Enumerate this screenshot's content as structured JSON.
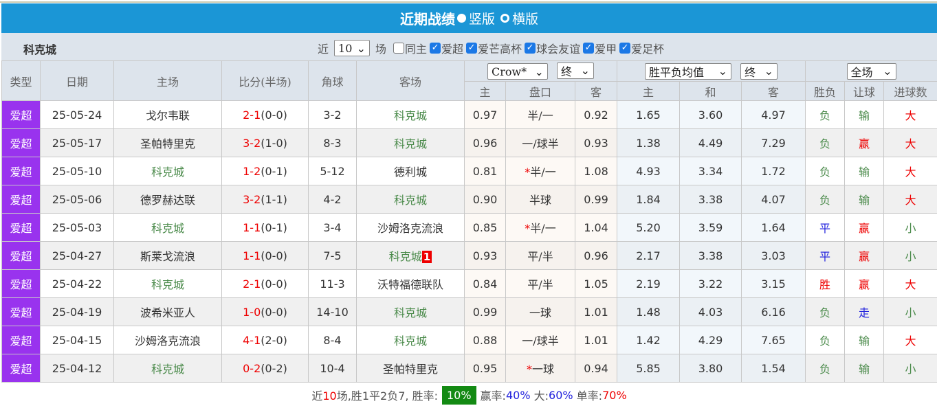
{
  "title": {
    "text": "近期战绩",
    "view_vertical": "竖版",
    "view_horizontal": "横版",
    "selected_view": "竖版"
  },
  "filter": {
    "team": "科克城",
    "recent_prefix": "近",
    "recent_count": "10",
    "recent_suffix": "场",
    "checkboxes": [
      {
        "label": "同主",
        "checked": false
      },
      {
        "label": "爱超",
        "checked": true
      },
      {
        "label": "爱芒高杯",
        "checked": true
      },
      {
        "label": "球会友谊",
        "checked": true
      },
      {
        "label": "爱甲",
        "checked": true
      },
      {
        "label": "爱足杯",
        "checked": true
      }
    ]
  },
  "header": {
    "type": "类型",
    "date": "日期",
    "home": "主场",
    "score": "比分(半场)",
    "corners": "角球",
    "away": "客场",
    "asian_company": "Crow*",
    "asian_stage": "终",
    "euro_type": "胜平负均值",
    "euro_stage": "终",
    "period": "全场",
    "sub": [
      "主",
      "盘口",
      "客",
      "主",
      "和",
      "客",
      "胜负",
      "让球",
      "进球数"
    ]
  },
  "rows": [
    {
      "type": "爱超",
      "date": "25-05-24",
      "home": "戈尔韦联",
      "score": "2-1",
      "half": "(0-0)",
      "corners": "3-2",
      "away": "科克城",
      "a_home": "0.97",
      "handicap": "半/一",
      "star": false,
      "a_away": "0.92",
      "e_home": "1.65",
      "e_draw": "3.60",
      "e_away": "4.97",
      "result": "负",
      "ah": "输",
      "ou": "大"
    },
    {
      "type": "爱超",
      "date": "25-05-17",
      "home": "圣帕特里克",
      "score": "3-2",
      "half": "(1-0)",
      "corners": "8-3",
      "away": "科克城",
      "a_home": "0.96",
      "handicap": "一/球半",
      "star": false,
      "a_away": "0.93",
      "e_home": "1.38",
      "e_draw": "4.49",
      "e_away": "7.29",
      "result": "负",
      "ah": "赢",
      "ou": "大"
    },
    {
      "type": "爱超",
      "date": "25-05-10",
      "home": "科克城",
      "score": "1-2",
      "half": "(0-1)",
      "corners": "5-12",
      "away": "德利城",
      "a_home": "0.81",
      "handicap": "半/一",
      "star": true,
      "a_away": "1.08",
      "e_home": "4.93",
      "e_draw": "3.34",
      "e_away": "1.72",
      "result": "负",
      "ah": "输",
      "ou": "大"
    },
    {
      "type": "爱超",
      "date": "25-05-06",
      "home": "德罗赫达联",
      "score": "3-2",
      "half": "(1-1)",
      "corners": "4-2",
      "away": "科克城",
      "a_home": "0.90",
      "handicap": "半球",
      "star": false,
      "a_away": "0.99",
      "e_home": "1.84",
      "e_draw": "3.38",
      "e_away": "4.07",
      "result": "负",
      "ah": "输",
      "ou": "大"
    },
    {
      "type": "爱超",
      "date": "25-05-03",
      "home": "科克城",
      "score": "1-1",
      "half": "(0-1)",
      "corners": "3-4",
      "away": "沙姆洛克流浪",
      "a_home": "0.85",
      "handicap": "半/一",
      "star": true,
      "a_away": "1.04",
      "e_home": "5.20",
      "e_draw": "3.59",
      "e_away": "1.64",
      "result": "平",
      "ah": "赢",
      "ou": "小"
    },
    {
      "type": "爱超",
      "date": "25-04-27",
      "home": "斯莱戈流浪",
      "score": "1-1",
      "half": "(0-0)",
      "corners": "7-5",
      "away": "科克城",
      "away_badge": "1",
      "a_home": "0.93",
      "handicap": "平/半",
      "star": false,
      "a_away": "0.96",
      "e_home": "2.17",
      "e_draw": "3.38",
      "e_away": "3.03",
      "result": "平",
      "ah": "赢",
      "ou": "小"
    },
    {
      "type": "爱超",
      "date": "25-04-22",
      "home": "科克城",
      "score": "2-1",
      "half": "(0-0)",
      "corners": "11-3",
      "away": "沃特福德联队",
      "a_home": "0.84",
      "handicap": "平/半",
      "star": false,
      "a_away": "1.05",
      "e_home": "2.19",
      "e_draw": "3.22",
      "e_away": "3.15",
      "result": "胜",
      "ah": "赢",
      "ou": "大"
    },
    {
      "type": "爱超",
      "date": "25-04-19",
      "home": "波希米亚人",
      "score": "1-0",
      "half": "(0-0)",
      "corners": "14-10",
      "away": "科克城",
      "a_home": "0.99",
      "handicap": "一球",
      "star": false,
      "a_away": "1.01",
      "e_home": "1.48",
      "e_draw": "4.03",
      "e_away": "6.16",
      "result": "负",
      "ah": "走",
      "ou": "小"
    },
    {
      "type": "爱超",
      "date": "25-04-15",
      "home": "沙姆洛克流浪",
      "score": "4-1",
      "half": "(2-0)",
      "corners": "8-4",
      "away": "科克城",
      "a_home": "0.88",
      "handicap": "一/球半",
      "star": false,
      "a_away": "1.01",
      "e_home": "1.42",
      "e_draw": "4.29",
      "e_away": "7.65",
      "result": "负",
      "ah": "输",
      "ou": "大"
    },
    {
      "type": "爱超",
      "date": "25-04-12",
      "home": "科克城",
      "score": "0-2",
      "half": "(0-2)",
      "corners": "10-4",
      "away": "圣帕特里克",
      "a_home": "0.95",
      "handicap": "一球",
      "star": true,
      "a_away": "0.94",
      "e_home": "5.85",
      "e_draw": "3.80",
      "e_away": "1.54",
      "result": "负",
      "ah": "输",
      "ou": "小"
    }
  ],
  "footer": {
    "p1": "近",
    "games": "10",
    "p2": "场,胜",
    "w": "1",
    "p3": "平",
    "d": "2",
    "p4": "负",
    "l": "7",
    "p5": ", 胜率:",
    "win_rate": "10%",
    "ah_label": "赢率:",
    "ah_rate": "40%",
    "ou_label": "大:",
    "ou_rate": "60%",
    "odd_label": "单率:",
    "odd_rate": "70%"
  },
  "colors": {
    "title_bg": "#1b96d6",
    "type_bg": "#9933ee",
    "team_green": "#4a8a4a",
    "win_rate_bg": "#138a13"
  }
}
